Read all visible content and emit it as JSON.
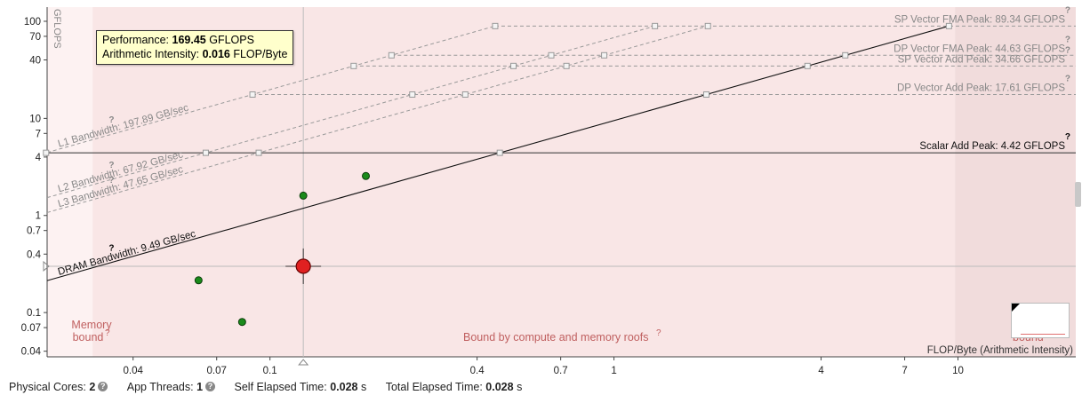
{
  "tooltip": {
    "perf_label": "Performance:",
    "perf_value": "169.45",
    "perf_unit": "GFLOPS",
    "ai_label": "Arithmetic Intensity:",
    "ai_value": "0.016",
    "ai_unit": "FLOP/Byte"
  },
  "footer": {
    "cores_label": "Physical Cores:",
    "cores_value": "2",
    "threads_label": "App Threads:",
    "threads_value": "1",
    "self_label": "Self Elapsed Time:",
    "self_value": "0.028",
    "self_unit": "s",
    "total_label": "Total Elapsed Time:",
    "total_value": "0.028",
    "total_unit": "s"
  },
  "chart_data": {
    "type": "scatter",
    "xscale": "log",
    "yscale": "log",
    "xlim": [
      0.0225,
      22
    ],
    "ylim": [
      0.035,
      140
    ],
    "ylabel": "GFLOPS",
    "xlabel": "FLOP/Byte (Arithmetic Intensity)",
    "x_ticks": [
      0.04,
      0.07,
      0.1,
      0.4,
      0.7,
      1,
      4,
      7,
      10
    ],
    "x_tick_labels": [
      "0.04",
      "0.07",
      "0.1",
      "0.4",
      "0.7",
      "1",
      "4",
      "7",
      "10"
    ],
    "y_ticks": [
      0.04,
      0.07,
      0.1,
      0.4,
      0.7,
      1,
      4,
      7,
      10,
      40,
      70,
      100
    ],
    "y_tick_labels": [
      "0.04",
      "0.07",
      "0.1",
      "0.4",
      "0.7",
      "1",
      "4",
      "7",
      "10",
      "40",
      "70",
      "100"
    ],
    "grid": false,
    "compute_roofs": [
      {
        "label": "SP Vector FMA Peak: 89.34 GFLOPS",
        "value": 89.34,
        "style": "dashed"
      },
      {
        "label": "DP Vector FMA Peak: 44.63 GFLOPS",
        "value": 44.63,
        "style": "dashed"
      },
      {
        "label": "SP Vector Add Peak: 34.66 GFLOPS",
        "value": 34.66,
        "style": "dashed"
      },
      {
        "label": "DP Vector Add Peak: 17.61 GFLOPS",
        "value": 17.61,
        "style": "dashed"
      },
      {
        "label": "Scalar Add Peak: 4.42 GFLOPS",
        "value": 4.42,
        "style": "solid"
      }
    ],
    "memory_roofs": [
      {
        "label": "L1 Bandwidth: 197.89 GB/sec",
        "value": 197.89,
        "style": "dashed"
      },
      {
        "label": "L2 Bandwidth: 67.92 GB/sec",
        "value": 67.92,
        "style": "dashed"
      },
      {
        "label": "L3 Bandwidth: 47.65 GB/sec",
        "value": 47.65,
        "style": "dashed"
      },
      {
        "label": "DRAM Bandwidth: 9.49 GB/sec",
        "value": 9.49,
        "style": "solid"
      }
    ],
    "regions": {
      "memory_bound": "Memory bound",
      "compute_memory": "Bound by compute and memory roofs",
      "compute_bound": "bound"
    },
    "points": [
      {
        "x": 0.062,
        "y": 0.215,
        "color": "#1a8a1a"
      },
      {
        "x": 0.083,
        "y": 0.08,
        "color": "#1a8a1a"
      },
      {
        "x": 0.125,
        "y": 1.6,
        "color": "#1a8a1a"
      },
      {
        "x": 0.19,
        "y": 2.55,
        "color": "#1a8a1a"
      }
    ],
    "selected_point": {
      "x": 0.125,
      "y": 0.3,
      "color": "#e02020"
    }
  }
}
